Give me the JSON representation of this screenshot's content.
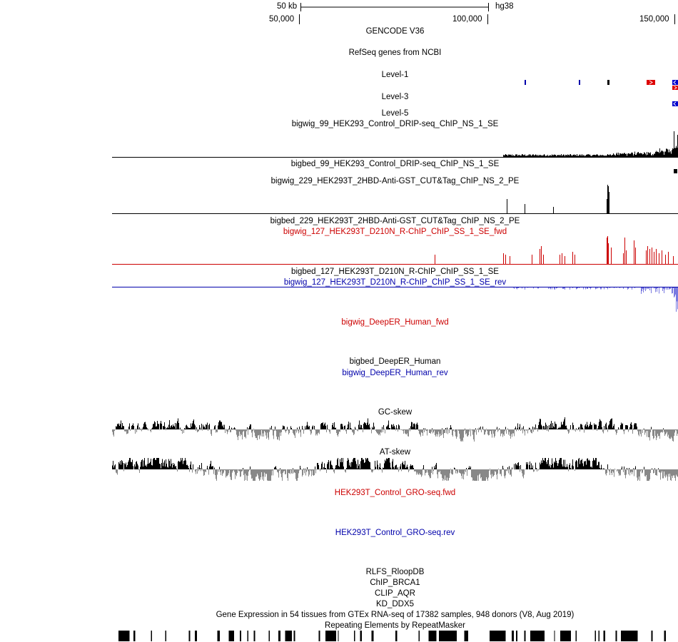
{
  "ruler": {
    "scale_label": "50 kb",
    "assembly": "hg38",
    "ticks": [
      "50,000",
      "100,000",
      "150,000"
    ]
  },
  "tracks": {
    "gencode": "GENCODE V36",
    "refseq": "RefSeq genes from NCBI",
    "level1": "Level-1",
    "level3": "Level-3",
    "level5": "Level-5",
    "bigwig_99": "bigwig_99_HEK293_Control_DRIP-seq_ChIP_NS_1_SE",
    "bigbed_99": "bigbed_99_HEK293_Control_DRIP-seq_ChIP_NS_1_SE",
    "bigwig_229": "bigwig_229_HEK293T_2HBD-Anti-GST_CUT&Tag_ChIP_NS_2_PE",
    "bigbed_229": "bigbed_229_HEK293T_2HBD-Anti-GST_CUT&Tag_ChIP_NS_2_PE",
    "bigwig_127_fwd": "bigwig_127_HEK293T_D210N_R-ChIP_ChIP_SS_1_SE_fwd",
    "bigbed_127": "bigbed_127_HEK293T_D210N_R-ChIP_ChIP_SS_1_SE",
    "bigwig_127_rev": "bigwig_127_HEK293T_D210N_R-ChIP_ChIP_SS_1_SE_rev",
    "deeper_fwd": "bigwig_DeepER_Human_fwd",
    "deeper_bigbed": "bigbed_DeepER_Human",
    "deeper_rev": "bigwig_DeepER_Human_rev",
    "gc_skew": "GC-skew",
    "at_skew": "AT-skew",
    "gro_fwd": "HEK293T_Control_GRO-seq.fwd",
    "gro_rev": "HEK293T_Control_GRO-seq.rev",
    "rlfs": "RLFS_RloopDB",
    "chip_brca1": "ChIP_BRCA1",
    "clip_aqr": "CLIP_AQR",
    "kd_ddx5": "KD_DDX5",
    "gtex": "Gene Expression in 54 tissues from GTEx RNA-seq of 17382 samples, 948 donors (V8, Aug 2019)",
    "repeatmasker": "Repeating Elements by RepeatMasker"
  },
  "colors": {
    "forward_strand": "#cc0000",
    "reverse_strand": "#0000aa",
    "reverse_signal": "#7a7ae0",
    "skew_negative": "#888888",
    "signal": "#000000"
  }
}
